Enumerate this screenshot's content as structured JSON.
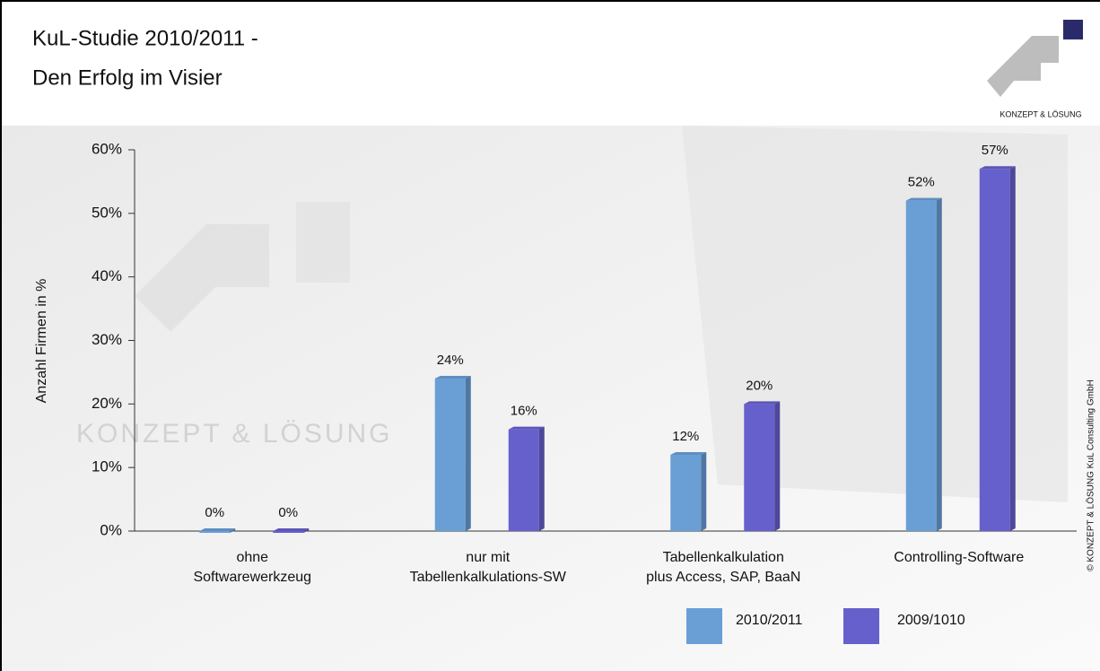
{
  "chart_data": {
    "type": "bar",
    "title": "KuL-Studie 2010/2011  -",
    "subtitle": "Den Erfolg im Visier",
    "y_label": "Anzahl Firmen in %",
    "categories": [
      [
        "ohne",
        "Softwarewerkzeug"
      ],
      [
        "nur mit",
        "Tabellenkalkulations-SW"
      ],
      [
        "Tabellenkalkulation",
        "plus Access, SAP, BaaN"
      ],
      [
        "Controlling-Software"
      ]
    ],
    "series": [
      {
        "name": "2010/2011",
        "color": "#6a9fd6",
        "values": [
          0,
          24,
          12,
          52
        ],
        "value_labels": [
          "0%",
          "24%",
          "12%",
          "52%"
        ]
      },
      {
        "name": "2009/1010",
        "color": "#6660cc",
        "values": [
          0,
          16,
          20,
          57
        ],
        "value_labels": [
          "0%",
          "16%",
          "20%",
          "57%"
        ]
      }
    ],
    "ylim": [
      0,
      60
    ],
    "yticks": [
      {
        "value": 0,
        "label": "0%"
      },
      {
        "value": 10,
        "label": "10%"
      },
      {
        "value": 20,
        "label": "20%"
      },
      {
        "value": 30,
        "label": "30%"
      },
      {
        "value": 40,
        "label": "40%"
      },
      {
        "value": 50,
        "label": "50%"
      },
      {
        "value": 60,
        "label": "60%"
      }
    ],
    "legend": "bottom-right"
  },
  "branding": {
    "logo_text": "KONZEPT & LÖSUNG",
    "copyright": "© KONZEPT & LÖSUNG KuL Consulting GmbH"
  }
}
